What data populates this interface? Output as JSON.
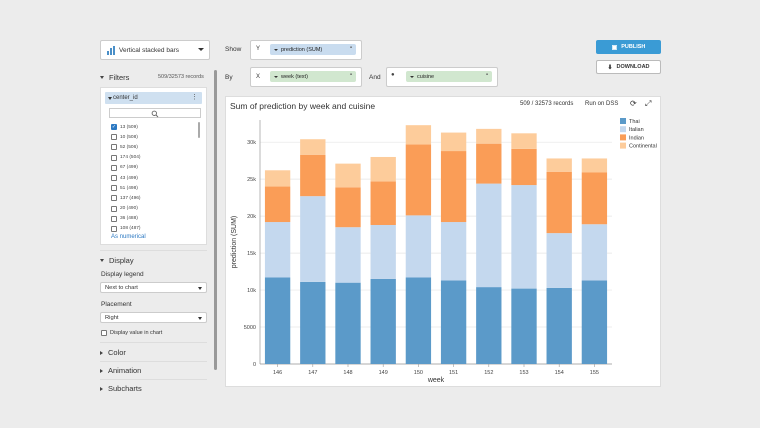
{
  "toolbar": {
    "chart_type": "Vertical stacked bars",
    "show_label": "Show",
    "by_label": "By",
    "and_label": "And",
    "y_axis_letter": "Y",
    "y_field": "prediction (SUM)",
    "x_axis_letter": "X",
    "x_field": "week (text)",
    "color_field": "cuisine",
    "publish": "PUBLISH",
    "download": "DOWNLOAD"
  },
  "filters": {
    "title": "Filters",
    "records": "509/32573 records",
    "filter_name": "center_id",
    "items": [
      {
        "label": "13 (509)",
        "checked": true
      },
      {
        "label": "10 (508)",
        "checked": false
      },
      {
        "label": "52 (506)",
        "checked": false
      },
      {
        "label": "174 (504)",
        "checked": false
      },
      {
        "label": "67 (499)",
        "checked": false
      },
      {
        "label": "43 (499)",
        "checked": false
      },
      {
        "label": "51 (498)",
        "checked": false
      },
      {
        "label": "137 (496)",
        "checked": false
      },
      {
        "label": "20 (490)",
        "checked": false
      },
      {
        "label": "36 (488)",
        "checked": false
      },
      {
        "label": "108 (487)",
        "checked": false
      }
    ],
    "as_numerical": "As numerical"
  },
  "display": {
    "title": "Display",
    "legend_label": "Display legend",
    "legend_value": "Next to chart",
    "placement_label": "Placement",
    "placement_value": "Right",
    "value_in_chart": "Display value in chart"
  },
  "sections": {
    "color": "Color",
    "animation": "Animation",
    "subcharts": "Subcharts"
  },
  "chart_header": {
    "title": "Sum of prediction by week and cuisine",
    "records": "509 / 32573 records",
    "run": "Run on DSS"
  },
  "chart_data": {
    "type": "bar",
    "stacked": true,
    "categories": [
      "146",
      "147",
      "148",
      "149",
      "150",
      "151",
      "152",
      "153",
      "154",
      "155"
    ],
    "series": [
      {
        "name": "Thai",
        "color": "#5b9ac9",
        "values": [
          11700,
          11100,
          11000,
          11500,
          11700,
          11300,
          10400,
          10200,
          10300,
          11300
        ]
      },
      {
        "name": "Italian",
        "color": "#c4d8ee",
        "values": [
          7500,
          11600,
          7500,
          7300,
          8400,
          7900,
          14000,
          14000,
          7400,
          7600
        ]
      },
      {
        "name": "Indian",
        "color": "#fa9d57",
        "values": [
          4800,
          5600,
          5400,
          5900,
          9600,
          9600,
          5400,
          4900,
          8300,
          7000
        ]
      },
      {
        "name": "Continental",
        "color": "#fdcc9b",
        "values": [
          2200,
          2100,
          3200,
          3300,
          2600,
          2500,
          2000,
          2100,
          1800,
          1900
        ]
      }
    ],
    "xlabel": "week",
    "ylabel": "prediction (SUM)",
    "ylim": [
      0,
      33000
    ],
    "yticks": [
      "0",
      "5000",
      "10k",
      "15k",
      "20k",
      "25k",
      "30k"
    ],
    "grid": true,
    "legend": "right"
  }
}
